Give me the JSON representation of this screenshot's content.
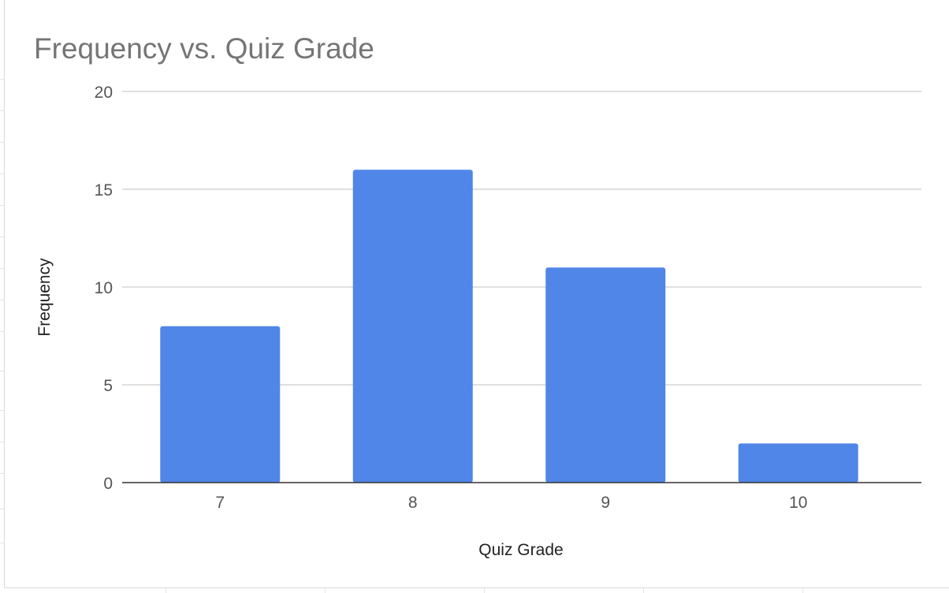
{
  "chart_data": {
    "type": "bar",
    "title": "Frequency vs. Quiz Grade",
    "xlabel": "Quiz Grade",
    "ylabel": "Frequency",
    "categories": [
      "7",
      "8",
      "9",
      "10"
    ],
    "values": [
      8,
      16,
      11,
      2
    ],
    "yticks": [
      "0",
      "5",
      "10",
      "15",
      "20"
    ],
    "ylim": [
      0,
      20
    ],
    "grid": true,
    "legend": "none",
    "colors": {
      "bar": "#5086E8",
      "gridline": "#CCCCCC",
      "baseline": "#333333"
    }
  }
}
